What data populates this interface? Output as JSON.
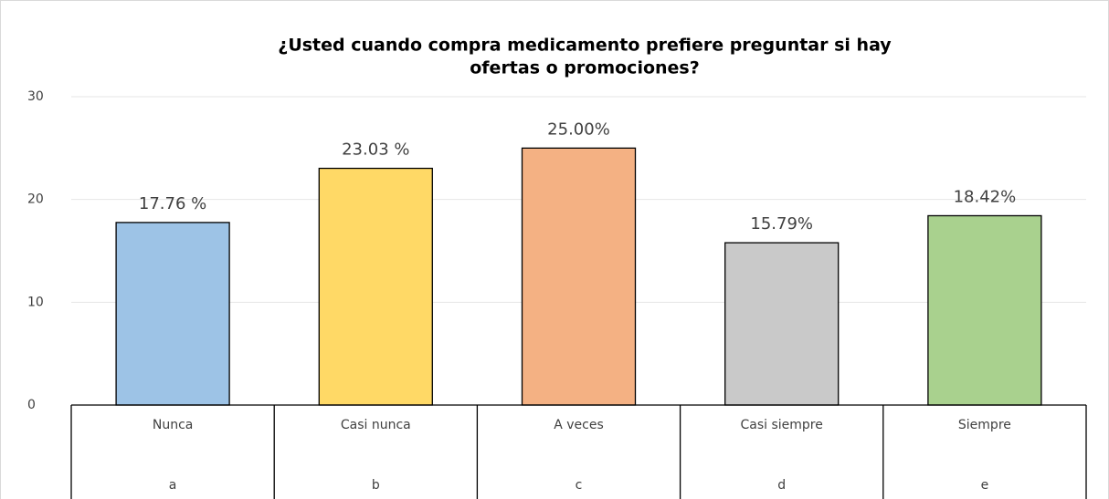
{
  "chart_data": {
    "type": "bar",
    "title": [
      "¿Usted cuando compra medicamento prefiere preguntar si hay",
      "ofertas o promociones?"
    ],
    "categories": [
      "Nunca",
      "Casi nunca",
      "A veces",
      "Casi siempre",
      "Siempre"
    ],
    "subcategories": [
      "a",
      "b",
      "c",
      "d",
      "e"
    ],
    "values": [
      17.76,
      23.03,
      25,
      15.79,
      18.42
    ],
    "value_labels": [
      "17.76 %",
      "23.03 %",
      "25.00%",
      "15.79%",
      "18.42%"
    ],
    "colors": [
      "#9dc3e6",
      "#ffd966",
      "#f4b183",
      "#c9c9c9",
      "#a9d18e"
    ],
    "ylim": [
      0,
      30
    ],
    "yticks": [
      0,
      10,
      20,
      30
    ],
    "grid": true
  }
}
